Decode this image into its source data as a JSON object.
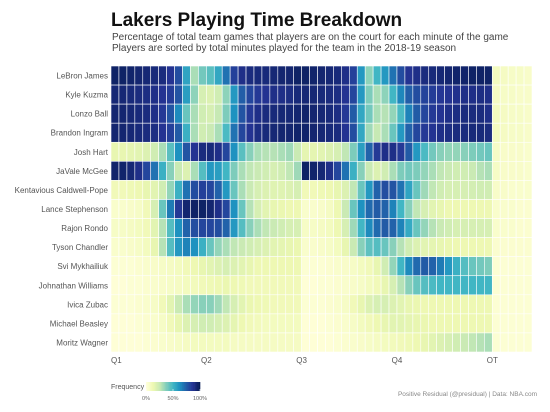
{
  "chart_data": {
    "type": "heatmap",
    "title": "Lakers Playing Time Breakdown",
    "subtitle": [
      "Percentage of total team games that players are on the court for each minute of the game",
      "Players are sorted by total minutes played for the team in the 2018-19 season"
    ],
    "players": [
      "LeBron James",
      "Kyle Kuzma",
      "Lonzo Ball",
      "Brandon Ingram",
      "Josh Hart",
      "JaVale McGee",
      "Kentavious Caldwell-Pope",
      "Lance Stephenson",
      "Rajon Rondo",
      "Tyson Chandler",
      "Svi Mykhailiuk",
      "Johnathan Williams",
      "Ivica Zubac",
      "Michael Beasley",
      "Moritz Wagner"
    ],
    "x_ticks": [
      "Q1",
      "Q2",
      "Q3",
      "Q4",
      "OT"
    ],
    "minutes": 53,
    "values": [
      [
        0.97,
        0.97,
        0.96,
        0.95,
        0.94,
        0.93,
        0.92,
        0.88,
        0.8,
        0.56,
        0.3,
        0.4,
        0.45,
        0.55,
        0.7,
        0.84,
        0.9,
        0.92,
        0.93,
        0.93,
        0.94,
        0.95,
        0.95,
        0.97,
        0.97,
        0.96,
        0.95,
        0.94,
        0.93,
        0.9,
        0.84,
        0.6,
        0.35,
        0.5,
        0.6,
        0.7,
        0.8,
        0.88,
        0.9,
        0.92,
        0.93,
        0.94,
        0.95,
        0.96,
        0.96,
        0.97,
        0.97,
        0.97,
        0.08,
        0.07,
        0.06,
        0.06,
        0.05
      ],
      [
        0.94,
        0.94,
        0.93,
        0.92,
        0.91,
        0.9,
        0.88,
        0.85,
        0.78,
        0.58,
        0.35,
        0.2,
        0.18,
        0.22,
        0.35,
        0.6,
        0.75,
        0.82,
        0.86,
        0.88,
        0.9,
        0.9,
        0.91,
        0.93,
        0.94,
        0.94,
        0.93,
        0.92,
        0.91,
        0.88,
        0.82,
        0.6,
        0.38,
        0.3,
        0.35,
        0.5,
        0.65,
        0.75,
        0.8,
        0.83,
        0.85,
        0.87,
        0.88,
        0.89,
        0.9,
        0.9,
        0.91,
        0.9,
        0.07,
        0.06,
        0.06,
        0.05,
        0.05
      ],
      [
        0.95,
        0.95,
        0.94,
        0.93,
        0.92,
        0.9,
        0.86,
        0.78,
        0.64,
        0.42,
        0.3,
        0.22,
        0.2,
        0.25,
        0.38,
        0.62,
        0.78,
        0.86,
        0.9,
        0.92,
        0.93,
        0.94,
        0.94,
        0.95,
        0.96,
        0.95,
        0.94,
        0.93,
        0.91,
        0.86,
        0.76,
        0.55,
        0.4,
        0.3,
        0.28,
        0.34,
        0.48,
        0.66,
        0.76,
        0.82,
        0.86,
        0.88,
        0.9,
        0.91,
        0.92,
        0.92,
        0.92,
        0.9,
        0.08,
        0.07,
        0.06,
        0.06,
        0.05
      ],
      [
        0.95,
        0.95,
        0.94,
        0.93,
        0.92,
        0.91,
        0.88,
        0.84,
        0.76,
        0.52,
        0.3,
        0.22,
        0.24,
        0.3,
        0.48,
        0.7,
        0.82,
        0.88,
        0.91,
        0.93,
        0.94,
        0.95,
        0.95,
        0.96,
        0.96,
        0.95,
        0.94,
        0.93,
        0.92,
        0.88,
        0.8,
        0.55,
        0.32,
        0.25,
        0.3,
        0.42,
        0.6,
        0.74,
        0.82,
        0.86,
        0.88,
        0.9,
        0.91,
        0.92,
        0.92,
        0.93,
        0.93,
        0.92,
        0.08,
        0.07,
        0.06,
        0.06,
        0.05
      ],
      [
        0.14,
        0.14,
        0.15,
        0.16,
        0.18,
        0.22,
        0.3,
        0.45,
        0.62,
        0.78,
        0.88,
        0.92,
        0.93,
        0.9,
        0.82,
        0.62,
        0.45,
        0.36,
        0.3,
        0.28,
        0.28,
        0.3,
        0.32,
        0.24,
        0.15,
        0.15,
        0.16,
        0.18,
        0.2,
        0.26,
        0.38,
        0.58,
        0.74,
        0.86,
        0.9,
        0.9,
        0.86,
        0.76,
        0.6,
        0.48,
        0.4,
        0.36,
        0.34,
        0.34,
        0.36,
        0.38,
        0.4,
        0.42,
        0.06,
        0.05,
        0.05,
        0.05,
        0.04
      ],
      [
        0.96,
        0.96,
        0.94,
        0.9,
        0.82,
        0.7,
        0.52,
        0.36,
        0.24,
        0.18,
        0.3,
        0.46,
        0.6,
        0.58,
        0.5,
        0.38,
        0.3,
        0.26,
        0.24,
        0.22,
        0.2,
        0.22,
        0.26,
        0.32,
        0.97,
        0.96,
        0.94,
        0.9,
        0.82,
        0.7,
        0.52,
        0.36,
        0.24,
        0.18,
        0.22,
        0.3,
        0.38,
        0.4,
        0.38,
        0.34,
        0.3,
        0.26,
        0.24,
        0.22,
        0.22,
        0.24,
        0.28,
        0.3,
        0.06,
        0.05,
        0.05,
        0.05,
        0.04
      ],
      [
        0.1,
        0.1,
        0.11,
        0.12,
        0.14,
        0.16,
        0.22,
        0.34,
        0.52,
        0.7,
        0.8,
        0.84,
        0.82,
        0.74,
        0.6,
        0.42,
        0.3,
        0.24,
        0.2,
        0.18,
        0.17,
        0.17,
        0.18,
        0.2,
        0.1,
        0.1,
        0.11,
        0.12,
        0.14,
        0.18,
        0.26,
        0.42,
        0.6,
        0.74,
        0.8,
        0.78,
        0.7,
        0.56,
        0.42,
        0.32,
        0.26,
        0.22,
        0.2,
        0.2,
        0.2,
        0.21,
        0.22,
        0.22,
        0.05,
        0.05,
        0.04,
        0.04,
        0.04
      ],
      [
        0.04,
        0.04,
        0.05,
        0.06,
        0.1,
        0.2,
        0.42,
        0.68,
        0.86,
        0.95,
        0.97,
        0.97,
        0.95,
        0.9,
        0.82,
        0.62,
        0.42,
        0.28,
        0.2,
        0.16,
        0.14,
        0.13,
        0.12,
        0.12,
        0.04,
        0.04,
        0.05,
        0.07,
        0.12,
        0.24,
        0.42,
        0.62,
        0.72,
        0.76,
        0.74,
        0.66,
        0.5,
        0.36,
        0.26,
        0.2,
        0.16,
        0.14,
        0.12,
        0.12,
        0.12,
        0.12,
        0.12,
        0.12,
        0.04,
        0.04,
        0.04,
        0.03,
        0.03
      ],
      [
        0.06,
        0.06,
        0.07,
        0.08,
        0.1,
        0.16,
        0.28,
        0.46,
        0.62,
        0.74,
        0.8,
        0.82,
        0.82,
        0.8,
        0.74,
        0.6,
        0.46,
        0.36,
        0.3,
        0.26,
        0.24,
        0.22,
        0.2,
        0.2,
        0.06,
        0.06,
        0.07,
        0.08,
        0.12,
        0.2,
        0.32,
        0.5,
        0.64,
        0.72,
        0.76,
        0.74,
        0.66,
        0.54,
        0.42,
        0.34,
        0.28,
        0.24,
        0.22,
        0.2,
        0.2,
        0.2,
        0.2,
        0.2,
        0.04,
        0.04,
        0.04,
        0.03,
        0.03
      ],
      [
        0.04,
        0.04,
        0.05,
        0.06,
        0.08,
        0.14,
        0.28,
        0.46,
        0.6,
        0.66,
        0.62,
        0.52,
        0.42,
        0.34,
        0.3,
        0.26,
        0.24,
        0.22,
        0.2,
        0.18,
        0.16,
        0.15,
        0.14,
        0.13,
        0.04,
        0.04,
        0.05,
        0.06,
        0.08,
        0.14,
        0.24,
        0.36,
        0.44,
        0.46,
        0.42,
        0.36,
        0.28,
        0.22,
        0.18,
        0.16,
        0.15,
        0.14,
        0.13,
        0.12,
        0.12,
        0.12,
        0.12,
        0.12,
        0.03,
        0.03,
        0.03,
        0.03,
        0.03
      ],
      [
        0.02,
        0.02,
        0.02,
        0.03,
        0.04,
        0.05,
        0.06,
        0.07,
        0.08,
        0.1,
        0.12,
        0.14,
        0.16,
        0.18,
        0.2,
        0.18,
        0.16,
        0.14,
        0.12,
        0.12,
        0.12,
        0.12,
        0.12,
        0.12,
        0.02,
        0.02,
        0.02,
        0.03,
        0.04,
        0.05,
        0.06,
        0.08,
        0.1,
        0.14,
        0.22,
        0.34,
        0.5,
        0.64,
        0.72,
        0.76,
        0.74,
        0.68,
        0.6,
        0.52,
        0.46,
        0.42,
        0.4,
        0.38,
        0.02,
        0.02,
        0.02,
        0.02,
        0.02
      ],
      [
        0.01,
        0.01,
        0.02,
        0.02,
        0.03,
        0.04,
        0.05,
        0.06,
        0.07,
        0.08,
        0.09,
        0.1,
        0.11,
        0.12,
        0.13,
        0.12,
        0.11,
        0.1,
        0.1,
        0.1,
        0.1,
        0.1,
        0.1,
        0.1,
        0.01,
        0.01,
        0.02,
        0.02,
        0.03,
        0.04,
        0.05,
        0.06,
        0.08,
        0.1,
        0.14,
        0.2,
        0.28,
        0.36,
        0.42,
        0.46,
        0.48,
        0.5,
        0.5,
        0.5,
        0.5,
        0.5,
        0.5,
        0.5,
        0.02,
        0.02,
        0.02,
        0.02,
        0.02
      ],
      [
        0.02,
        0.02,
        0.02,
        0.03,
        0.04,
        0.06,
        0.1,
        0.16,
        0.24,
        0.3,
        0.34,
        0.36,
        0.36,
        0.32,
        0.26,
        0.2,
        0.16,
        0.13,
        0.12,
        0.11,
        0.1,
        0.1,
        0.1,
        0.1,
        0.02,
        0.02,
        0.02,
        0.03,
        0.04,
        0.06,
        0.1,
        0.14,
        0.18,
        0.2,
        0.2,
        0.18,
        0.16,
        0.14,
        0.13,
        0.12,
        0.12,
        0.12,
        0.12,
        0.12,
        0.12,
        0.12,
        0.12,
        0.12,
        0.02,
        0.02,
        0.02,
        0.02,
        0.02
      ],
      [
        0.01,
        0.01,
        0.01,
        0.02,
        0.03,
        0.04,
        0.06,
        0.1,
        0.14,
        0.18,
        0.2,
        0.22,
        0.22,
        0.2,
        0.18,
        0.15,
        0.12,
        0.1,
        0.09,
        0.08,
        0.08,
        0.08,
        0.08,
        0.08,
        0.01,
        0.01,
        0.01,
        0.02,
        0.03,
        0.04,
        0.06,
        0.08,
        0.1,
        0.12,
        0.14,
        0.16,
        0.16,
        0.15,
        0.14,
        0.13,
        0.12,
        0.12,
        0.12,
        0.12,
        0.12,
        0.12,
        0.12,
        0.12,
        0.02,
        0.02,
        0.02,
        0.02,
        0.02
      ],
      [
        0.01,
        0.01,
        0.01,
        0.01,
        0.02,
        0.03,
        0.04,
        0.05,
        0.06,
        0.07,
        0.08,
        0.08,
        0.08,
        0.08,
        0.08,
        0.07,
        0.07,
        0.07,
        0.07,
        0.07,
        0.07,
        0.07,
        0.07,
        0.07,
        0.01,
        0.01,
        0.01,
        0.01,
        0.02,
        0.03,
        0.04,
        0.05,
        0.06,
        0.07,
        0.08,
        0.09,
        0.1,
        0.11,
        0.12,
        0.14,
        0.16,
        0.18,
        0.2,
        0.22,
        0.24,
        0.26,
        0.28,
        0.3,
        0.02,
        0.02,
        0.02,
        0.02,
        0.02
      ]
    ],
    "legend": {
      "title": "Frequency",
      "ticks": [
        "0%",
        "50%",
        "100%"
      ]
    },
    "caption": "Positive Residual (@presidual)  |  Data: NBA.com",
    "colors": [
      "#ffffd9",
      "#edf8b1",
      "#c7e9b4",
      "#7fcdbb",
      "#41b6c4",
      "#1d91c0",
      "#225ea8",
      "#253494",
      "#081d58"
    ]
  }
}
